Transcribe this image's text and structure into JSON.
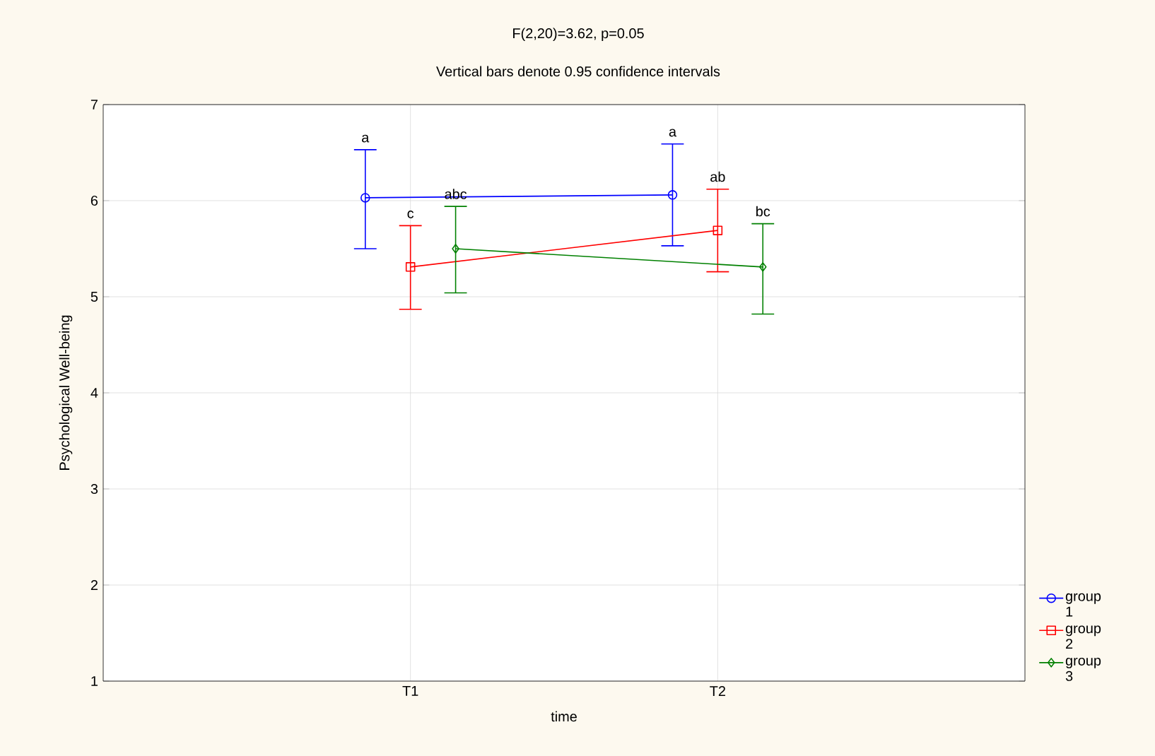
{
  "chart_data": {
    "type": "line",
    "title": "F(2,20)=3.62, p=0.05",
    "subtitle": "Vertical bars denote 0.95 confidence intervals",
    "xlabel": "time",
    "ylabel": "Psychological Well-being",
    "categories": [
      "T1",
      "T2"
    ],
    "series": [
      {
        "name": "group 1",
        "color": "#0000ff",
        "marker": "circle",
        "values": [
          6.03,
          6.06
        ],
        "errors": [
          [
            5.5,
            6.53
          ],
          [
            5.53,
            6.59
          ]
        ]
      },
      {
        "name": "group 2",
        "color": "#ff0000",
        "marker": "square",
        "values": [
          5.31,
          5.69
        ],
        "errors": [
          [
            4.87,
            5.74
          ],
          [
            5.26,
            6.12
          ]
        ]
      },
      {
        "name": "group 3",
        "color": "#008000",
        "marker": "diamond",
        "values": [
          5.5,
          5.31
        ],
        "errors": [
          [
            5.04,
            5.94
          ],
          [
            4.82,
            5.76
          ]
        ]
      }
    ],
    "annotations": [
      "a",
      "a",
      "c",
      "ab",
      "abc",
      "bc"
    ],
    "ylim": [
      1,
      7
    ],
    "yticks": [
      1,
      2,
      3,
      4,
      5,
      6,
      7
    ],
    "grid": true,
    "legend": "bottom right",
    "line_style": "solid"
  }
}
